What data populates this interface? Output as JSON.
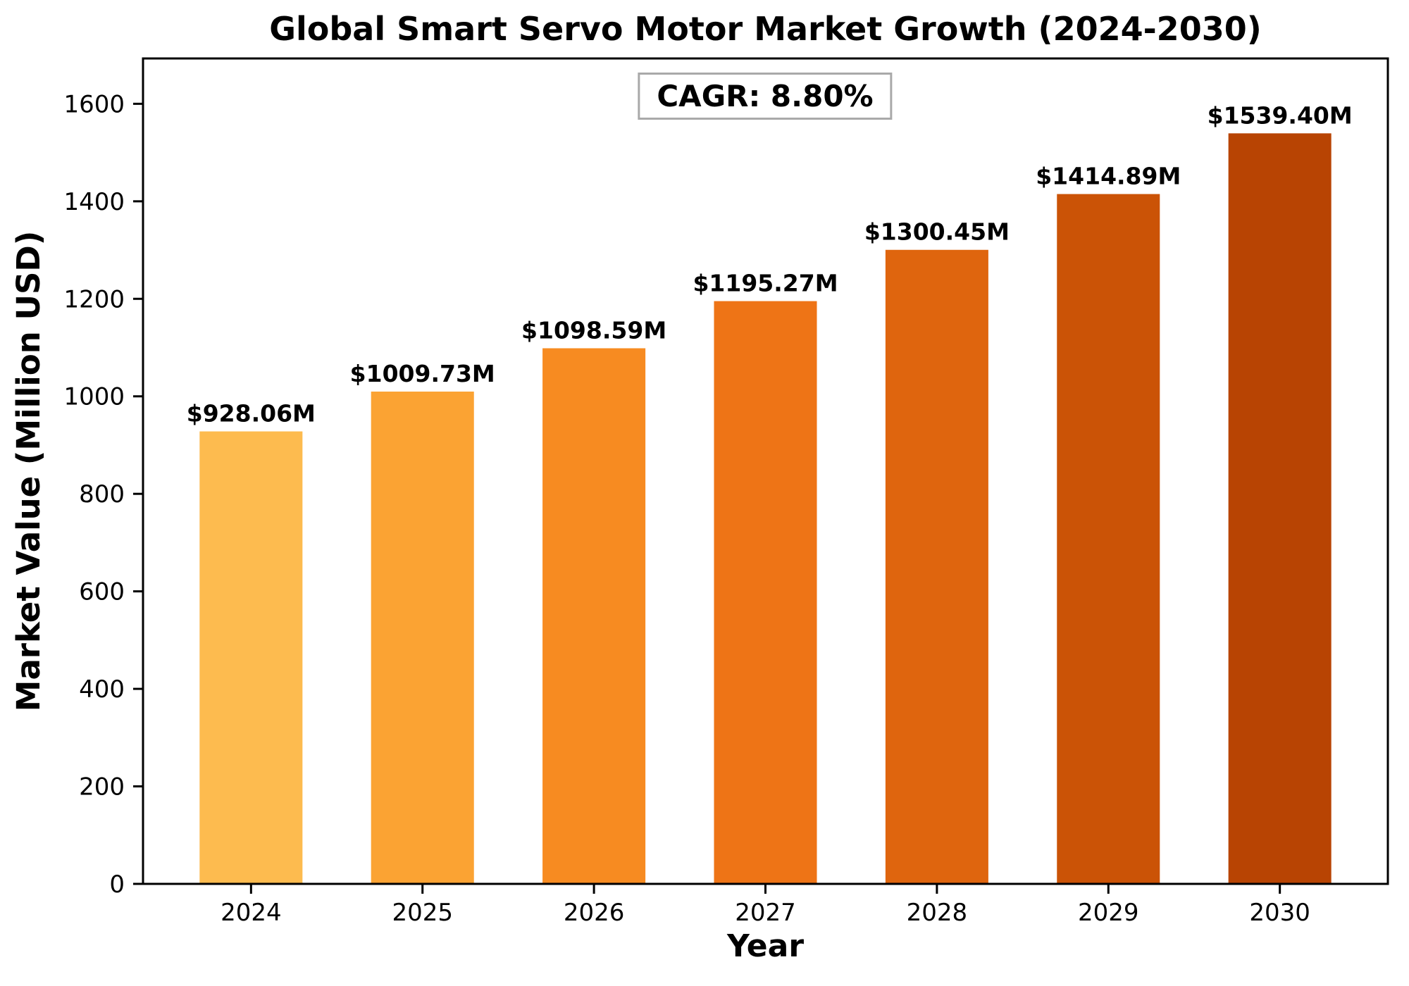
{
  "chart_data": {
    "type": "bar",
    "title": "Global Smart Servo Motor Market Growth (2024-2030)",
    "xlabel": "Year",
    "ylabel": "Market Value (Million USD)",
    "categories": [
      "2024",
      "2025",
      "2026",
      "2027",
      "2028",
      "2029",
      "2030"
    ],
    "values": [
      928.06,
      1009.73,
      1098.59,
      1195.27,
      1300.45,
      1414.89,
      1539.4
    ],
    "bar_labels": [
      "$928.06M",
      "$1009.73M",
      "$1098.59M",
      "$1195.27M",
      "$1300.45M",
      "$1414.89M",
      "$1539.40M"
    ],
    "bar_colors": [
      "#FDBB4F",
      "#FBA333",
      "#F78B21",
      "#EE7416",
      "#DF650E",
      "#CB5306",
      "#B84403"
    ],
    "ylim": [
      0,
      1693
    ],
    "yticks": [
      0,
      200,
      400,
      600,
      800,
      1000,
      1200,
      1400,
      1600
    ],
    "grid": false,
    "legend": "none",
    "annotation": {
      "text": "CAGR: 8.80%",
      "position": "top-center"
    },
    "colors": {
      "axis": "#000000",
      "text": "#000000",
      "annotation_border": "#a9a9a9",
      "background": "#ffffff"
    }
  }
}
